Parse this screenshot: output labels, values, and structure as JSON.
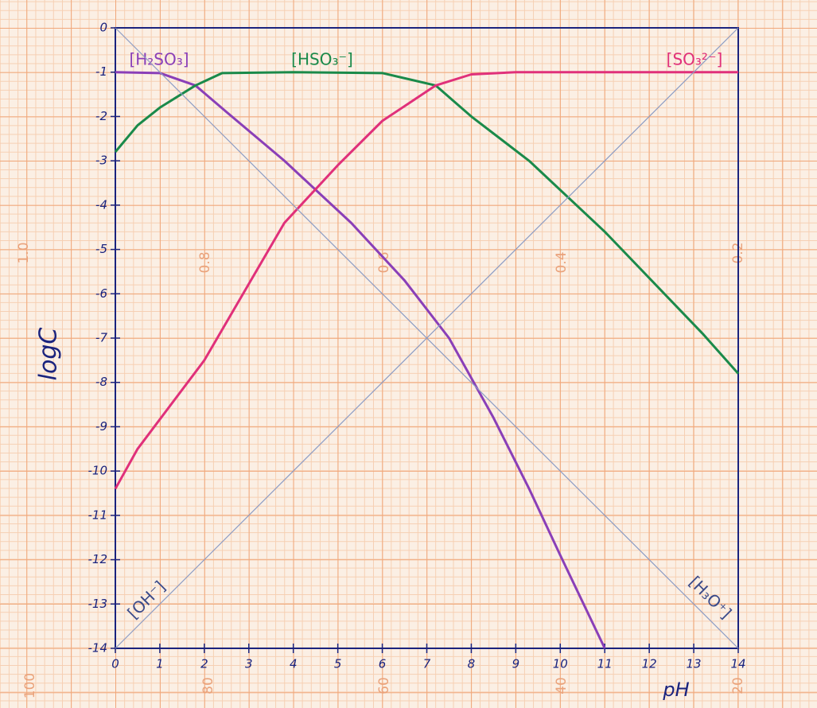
{
  "chart_data": {
    "type": "line",
    "x_label": "pH",
    "y_label": "logC",
    "xlim": [
      0,
      14
    ],
    "ylim": [
      -14,
      0
    ],
    "xticks": [
      0,
      1,
      2,
      3,
      4,
      5,
      6,
      7,
      8,
      9,
      10,
      11,
      12,
      13,
      14
    ],
    "yticks": [
      0,
      -1,
      -2,
      -3,
      -4,
      -5,
      -6,
      -7,
      -8,
      -9,
      -10,
      -11,
      -12,
      -13,
      -14
    ],
    "paper_markings": [
      "1.0",
      "0.8",
      "0.6",
      "0.4",
      "0.2",
      "100",
      "80",
      "60",
      "40",
      "20"
    ],
    "series": [
      {
        "name": "[H₂SO₃]",
        "color": "#8a3fb8",
        "x": [
          0,
          1,
          1.8,
          2.5,
          3.8,
          5.3,
          6.5,
          7.5,
          8.5,
          9.3,
          10,
          11
        ],
        "values": [
          -1,
          -1.02,
          -1.3,
          -1.9,
          -3.0,
          -4.4,
          -5.7,
          -7.0,
          -8.8,
          -10.4,
          -11.9,
          -14
        ]
      },
      {
        "name": "[HSO₃⁻]",
        "color": "#1a8a4a",
        "x": [
          0,
          0.5,
          1,
          1.8,
          2.4,
          4,
          6,
          7.2,
          8,
          9.3,
          11,
          13.2,
          14
        ],
        "values": [
          -2.8,
          -2.2,
          -1.8,
          -1.3,
          -1.02,
          -1,
          -1.02,
          -1.3,
          -2.0,
          -3.0,
          -4.6,
          -6.9,
          -7.8
        ]
      },
      {
        "name": "[SO₃²⁻]",
        "color": "#e0307a",
        "x": [
          0,
          0.5,
          2,
          3.8,
          5,
          6,
          7.2,
          8,
          9,
          14
        ],
        "values": [
          -10.4,
          -9.5,
          -7.5,
          -4.4,
          -3.1,
          -2.1,
          -1.3,
          -1.05,
          -1,
          -1
        ]
      },
      {
        "name": "[OH⁻]",
        "color": "#8c9cc4",
        "x": [
          0,
          14
        ],
        "values": [
          -14,
          0
        ]
      },
      {
        "name": "[H₃O⁺]",
        "color": "#8c9cc4",
        "x": [
          0,
          14
        ],
        "values": [
          0,
          -14
        ]
      }
    ]
  }
}
